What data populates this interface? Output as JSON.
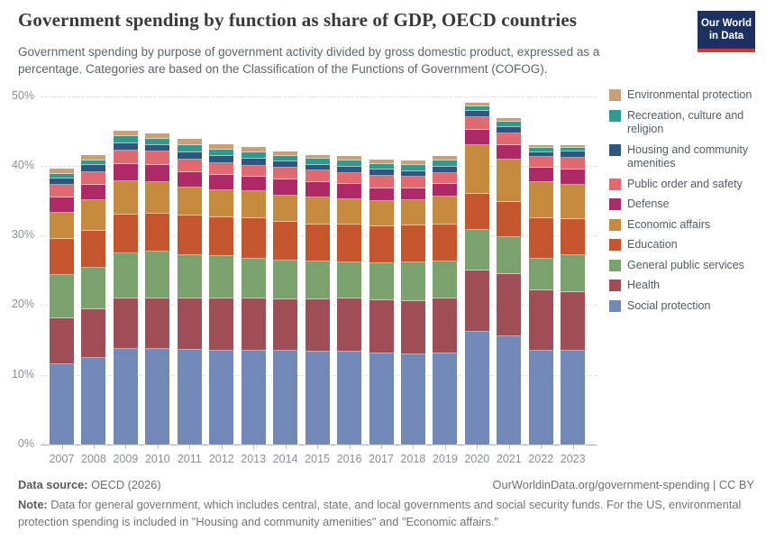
{
  "header": {
    "title": "Government spending by function as share of GDP, OECD countries",
    "subtitle": "Government spending by purpose of government activity divided by gross domestic product, expressed as a percentage. Categories are based on the Classification of the Functions of Government (COFOG).",
    "logo": {
      "line1": "Our World",
      "line2": "in Data",
      "bg_color": "#1D3160",
      "accent_color": "#CE3B32"
    }
  },
  "chart_data": {
    "type": "bar",
    "stacked": true,
    "title": "Government spending by function as share of GDP, OECD countries",
    "xlabel": "",
    "ylabel": "",
    "ylim": [
      0,
      50
    ],
    "ytick_values": [
      0,
      10,
      20,
      30,
      40,
      50
    ],
    "ytick_labels": [
      "0%",
      "10%",
      "20%",
      "30%",
      "40%",
      "50%"
    ],
    "grid": "horizontal-dashed",
    "legend_position": "right",
    "legend_order": "top-of-stack-first",
    "x": [
      "2007",
      "2008",
      "2009",
      "2010",
      "2011",
      "2012",
      "2013",
      "2014",
      "2015",
      "2016",
      "2017",
      "2018",
      "2019",
      "2020",
      "2021",
      "2022",
      "2023"
    ],
    "series": [
      {
        "name": "Social protection",
        "color": "#7289B7",
        "values": [
          11.5,
          12.4,
          13.7,
          13.7,
          13.6,
          13.5,
          13.5,
          13.4,
          13.3,
          13.3,
          13.1,
          12.9,
          13.1,
          16.2,
          15.5,
          13.5,
          13.4
        ]
      },
      {
        "name": "Health",
        "color": "#A04E56",
        "values": [
          6.6,
          7.0,
          7.2,
          7.2,
          7.3,
          7.4,
          7.4,
          7.4,
          7.5,
          7.6,
          7.6,
          7.7,
          7.8,
          8.8,
          8.9,
          8.6,
          8.5
        ]
      },
      {
        "name": "General public services",
        "color": "#7BA26D",
        "values": [
          6.2,
          5.9,
          6.5,
          6.8,
          6.3,
          6.1,
          5.8,
          5.6,
          5.4,
          5.2,
          5.3,
          5.5,
          5.3,
          5.8,
          5.3,
          4.6,
          5.3
        ]
      },
      {
        "name": "Education",
        "color": "#C4552D",
        "values": [
          5.2,
          5.4,
          5.6,
          5.4,
          5.6,
          5.6,
          5.7,
          5.6,
          5.4,
          5.4,
          5.3,
          5.3,
          5.4,
          5.1,
          5.1,
          5.7,
          5.1
        ]
      },
      {
        "name": "Economic affairs",
        "color": "#C68A3F",
        "values": [
          3.7,
          4.3,
          4.8,
          4.6,
          4.0,
          3.9,
          3.9,
          3.7,
          3.8,
          3.7,
          3.6,
          3.6,
          4.0,
          7.0,
          6.1,
          5.2,
          5.0
        ]
      },
      {
        "name": "Defense",
        "color": "#AE2A67",
        "values": [
          2.3,
          2.2,
          2.4,
          2.4,
          2.3,
          2.2,
          2.1,
          2.3,
          2.2,
          2.2,
          1.9,
          1.7,
          1.8,
          2.2,
          2.1,
          2.1,
          2.2
        ]
      },
      {
        "name": "Public order and safety",
        "color": "#E16A70",
        "values": [
          1.8,
          1.9,
          2.0,
          2.0,
          1.8,
          1.7,
          1.6,
          1.75,
          1.7,
          1.6,
          1.7,
          1.7,
          1.6,
          1.9,
          1.6,
          1.5,
          1.6
        ]
      },
      {
        "name": "Housing and community amenities",
        "color": "#2E567E",
        "values": [
          0.9,
          1.0,
          1.0,
          0.9,
          0.95,
          0.95,
          0.95,
          0.85,
          0.8,
          0.85,
          0.9,
          0.85,
          0.8,
          0.8,
          0.9,
          0.7,
          0.9
        ]
      },
      {
        "name": "Recreation, culture and religion",
        "color": "#319A8D",
        "values": [
          0.6,
          0.7,
          1.0,
          0.9,
          1.1,
          0.95,
          0.9,
          0.85,
          0.9,
          0.85,
          0.8,
          0.85,
          0.9,
          0.7,
          0.8,
          0.6,
          0.6
        ]
      },
      {
        "name": "Environmental protection",
        "color": "#C7A077",
        "values": [
          0.8,
          0.7,
          0.8,
          0.7,
          0.85,
          0.8,
          0.8,
          0.65,
          0.5,
          0.7,
          0.7,
          0.7,
          0.7,
          0.5,
          0.5,
          0.4,
          0.4
        ]
      }
    ]
  },
  "footer": {
    "datasource_label": "Data source:",
    "datasource_value": " OECD (2026)",
    "link_text": "OurWorldinData.org/government-spending",
    "separator": " | ",
    "license": "CC BY",
    "note_label": "Note:",
    "note_text": " Data for general government, which includes central, state, and local governments and social security funds. For the US, environmental protection spending is included in \"Housing and community amenities\" and \"Economic affairs.\""
  }
}
